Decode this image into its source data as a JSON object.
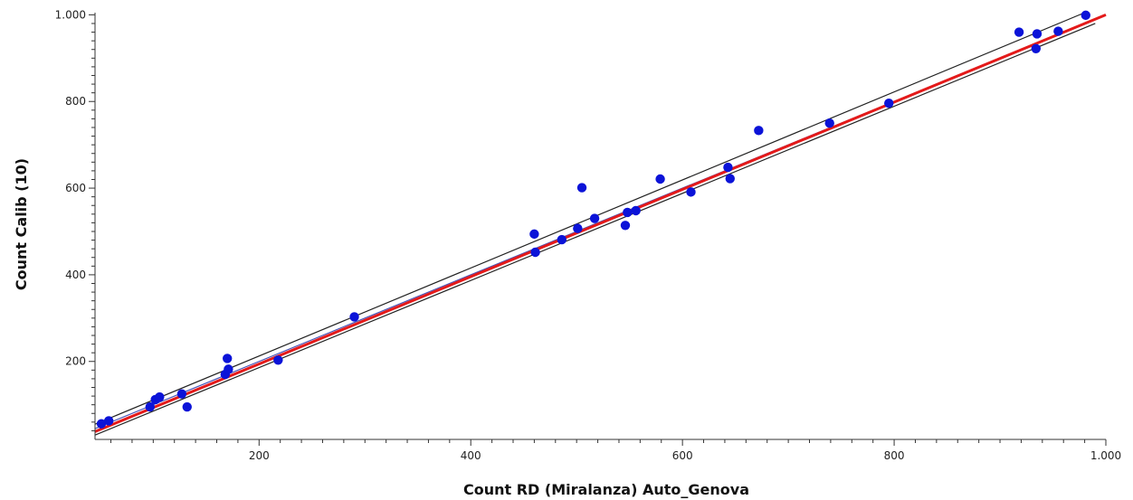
{
  "chart_data": {
    "type": "scatter",
    "title": "",
    "xlabel": "Count RD (Miralanza) Auto_Genova",
    "ylabel": "Count Calib (10)",
    "xlim": [
      45,
      1000
    ],
    "ylim": [
      20,
      1005
    ],
    "x_ticks": [
      200,
      400,
      600,
      800,
      1000
    ],
    "x_tick_labels": [
      "200",
      "400",
      "600",
      "800",
      "1.000"
    ],
    "y_ticks": [
      200,
      400,
      600,
      800,
      1000
    ],
    "y_tick_labels": [
      "200",
      "400",
      "600",
      "800",
      "1.000"
    ],
    "grid": false,
    "colors": {
      "points": "#0b13d8",
      "fit_line": "#e41a1a",
      "identity_line": "#4a56b8",
      "ci_bands": "#222222"
    },
    "series": [
      {
        "points": [
          {
            "x": 51,
            "y": 56
          },
          {
            "x": 58,
            "y": 63
          },
          {
            "x": 97,
            "y": 95
          },
          {
            "x": 102,
            "y": 112
          },
          {
            "x": 106,
            "y": 118
          },
          {
            "x": 127,
            "y": 125
          },
          {
            "x": 132,
            "y": 95
          },
          {
            "x": 168,
            "y": 170
          },
          {
            "x": 170,
            "y": 207
          },
          {
            "x": 171,
            "y": 182
          },
          {
            "x": 218,
            "y": 203
          },
          {
            "x": 290,
            "y": 303
          },
          {
            "x": 460,
            "y": 494
          },
          {
            "x": 461,
            "y": 452
          },
          {
            "x": 486,
            "y": 481
          },
          {
            "x": 501,
            "y": 507
          },
          {
            "x": 505,
            "y": 601
          },
          {
            "x": 517,
            "y": 530
          },
          {
            "x": 546,
            "y": 514
          },
          {
            "x": 548,
            "y": 544
          },
          {
            "x": 556,
            "y": 548
          },
          {
            "x": 579,
            "y": 621
          },
          {
            "x": 608,
            "y": 591
          },
          {
            "x": 643,
            "y": 648
          },
          {
            "x": 645,
            "y": 622
          },
          {
            "x": 672,
            "y": 733
          },
          {
            "x": 739,
            "y": 750
          },
          {
            "x": 795,
            "y": 796
          },
          {
            "x": 918,
            "y": 960
          },
          {
            "x": 934,
            "y": 922
          },
          {
            "x": 935,
            "y": 956
          },
          {
            "x": 955,
            "y": 962
          },
          {
            "x": 981,
            "y": 999
          }
        ]
      }
    ],
    "lines": {
      "fit": {
        "x": [
          45,
          1000
        ],
        "y": [
          38,
          1000
        ]
      },
      "identity": {
        "x": [
          45,
          1000
        ],
        "y": [
          45,
          1000
        ]
      },
      "ci_upper": {
        "x": [
          45,
          980
        ],
        "y": [
          55,
          1005
        ]
      },
      "ci_lower": {
        "x": [
          45,
          990
        ],
        "y": [
          30,
          980
        ]
      }
    }
  }
}
